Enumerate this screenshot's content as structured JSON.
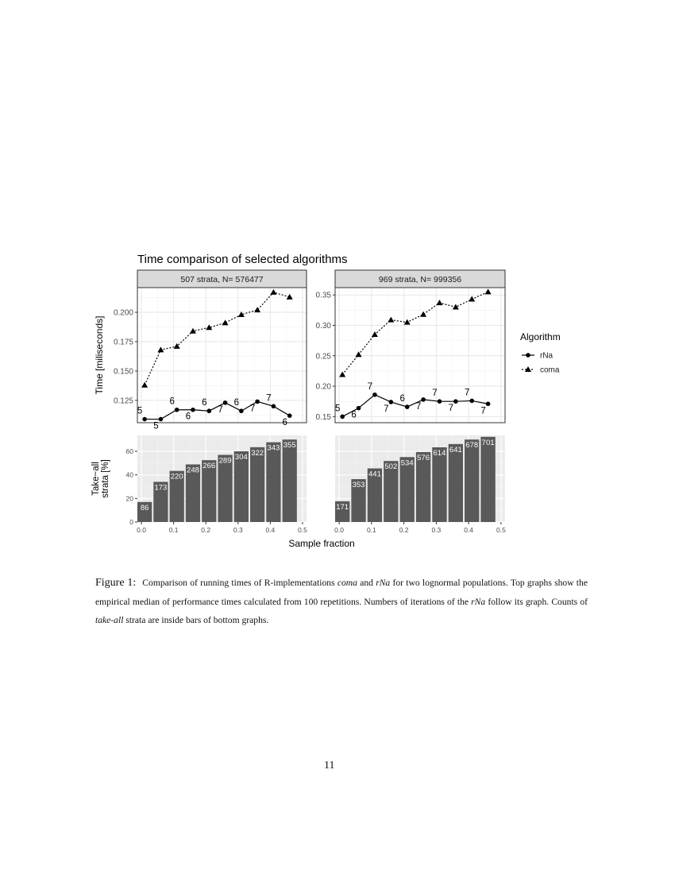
{
  "figure": {
    "title": "Time comparison of selected algorithms",
    "legend": {
      "title": "Algorithm",
      "items": [
        {
          "label": "rNa",
          "line": "solid",
          "marker": "circle"
        },
        {
          "label": "coma",
          "line": "dotted",
          "marker": "triangle"
        }
      ],
      "placement": "right"
    },
    "colors": {
      "strip": "#d9d9d9",
      "panel_bg_bottom": "#ebebeb",
      "bar": "#595959",
      "line": "#000000"
    }
  },
  "chart_data": [
    {
      "type": "line",
      "panel": "top-left",
      "strip": "507 strata,  N= 576477",
      "ylabel": "Time [miliseconds]",
      "xlim": [
        -0.0125,
        0.5125
      ],
      "ylim": [
        0.106,
        0.221
      ],
      "yticks": [
        "0.125",
        "0.150",
        "0.175",
        "0.200"
      ],
      "grid": true,
      "x": [
        0.01,
        0.06,
        0.11,
        0.16,
        0.21,
        0.26,
        0.31,
        0.36,
        0.41,
        0.46
      ],
      "series": [
        {
          "name": "rNa",
          "values": [
            0.109,
            0.109,
            0.117,
            0.117,
            0.116,
            0.123,
            0.116,
            0.124,
            0.12,
            0.112
          ],
          "labels": [
            "5",
            "5",
            "6",
            "6",
            "6",
            "7",
            "6",
            "7",
            "7",
            "6"
          ]
        },
        {
          "name": "coma",
          "values": [
            0.138,
            0.168,
            0.171,
            0.184,
            0.187,
            0.191,
            0.198,
            0.202,
            0.217,
            0.213
          ]
        }
      ]
    },
    {
      "type": "line",
      "panel": "top-right",
      "strip": "969 strata,  N= 999356",
      "xlim": [
        -0.0125,
        0.5125
      ],
      "ylim": [
        0.14,
        0.362
      ],
      "yticks": [
        "0.15",
        "0.20",
        "0.25",
        "0.30",
        "0.35"
      ],
      "grid": true,
      "x": [
        0.01,
        0.06,
        0.11,
        0.16,
        0.21,
        0.26,
        0.31,
        0.36,
        0.41,
        0.46
      ],
      "series": [
        {
          "name": "rNa",
          "values": [
            0.15,
            0.164,
            0.186,
            0.174,
            0.166,
            0.178,
            0.175,
            0.175,
            0.176,
            0.171
          ],
          "labels": [
            "5",
            "6",
            "7",
            "7",
            "6",
            "7",
            "7",
            "7",
            "7",
            "7"
          ]
        },
        {
          "name": "coma",
          "values": [
            0.219,
            0.252,
            0.285,
            0.309,
            0.305,
            0.318,
            0.337,
            0.33,
            0.343,
            0.355
          ]
        }
      ]
    },
    {
      "type": "bar",
      "panel": "bottom-left",
      "ylabel": "Take−all\nstrata [%]",
      "xlabel": "Sample fraction",
      "xlim": [
        -0.0125,
        0.5125
      ],
      "ylim": [
        0,
        73.5
      ],
      "yticks": [
        "0",
        "20",
        "40",
        "60"
      ],
      "xticks": [
        "0.0",
        "0.1",
        "0.2",
        "0.3",
        "0.4",
        "0.5"
      ],
      "x": [
        0.01,
        0.06,
        0.11,
        0.16,
        0.21,
        0.26,
        0.31,
        0.36,
        0.41,
        0.46
      ],
      "values": [
        17.0,
        34.1,
        43.4,
        48.9,
        52.5,
        57.0,
        60.0,
        63.5,
        67.7,
        70.0
      ],
      "labels": [
        "86",
        "173",
        "220",
        "248",
        "266",
        "289",
        "304",
        "322",
        "343",
        "355"
      ]
    },
    {
      "type": "bar",
      "panel": "bottom-right",
      "xlim": [
        -0.0125,
        0.5125
      ],
      "ylim": [
        0,
        73.5
      ],
      "xticks": [
        "0.0",
        "0.1",
        "0.2",
        "0.3",
        "0.4",
        "0.5"
      ],
      "x": [
        0.01,
        0.06,
        0.11,
        0.16,
        0.21,
        0.26,
        0.31,
        0.36,
        0.41,
        0.46
      ],
      "values": [
        17.6,
        36.4,
        45.5,
        51.8,
        55.1,
        59.4,
        63.4,
        66.2,
        70.0,
        72.3
      ],
      "labels": [
        "171",
        "353",
        "441",
        "502",
        "534",
        "576",
        "614",
        "641",
        "678",
        "701"
      ]
    }
  ],
  "caption": {
    "label": "Figure 1:",
    "t1": "Comparison of running times of R-implementations ",
    "i1": "coma",
    "t2": " and ",
    "i2": "rNa",
    "t3": " for two lognormal populations. Top graphs show the empirical median of performance times calculated from 100 repetitions. Numbers of iterations of the ",
    "i3": "rNa",
    "t4": " follow its graph. Counts of ",
    "i4": "take-all",
    "t5": " strata are inside bars of bottom graphs."
  },
  "page_number": "11"
}
